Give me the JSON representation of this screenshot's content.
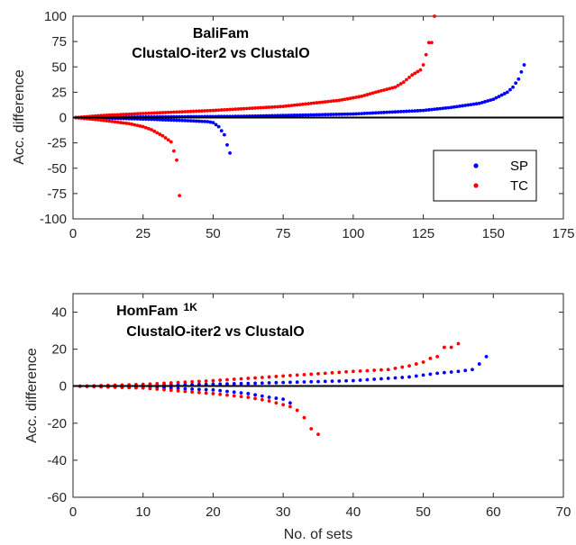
{
  "chart_data": [
    {
      "type": "scatter",
      "title_lines": [
        "BaliFam",
        "ClustalO-iter2  vs  ClustalO"
      ],
      "xlabel": "",
      "ylabel": "Acc. difference",
      "xlim": [
        0,
        175
      ],
      "ylim": [
        -100,
        100
      ],
      "xticks": [
        0,
        25,
        50,
        75,
        100,
        125,
        150,
        175
      ],
      "yticks": [
        -100,
        -75,
        -50,
        -25,
        0,
        25,
        50,
        75,
        100
      ],
      "grid": false,
      "legend": {
        "position": "right",
        "entries": [
          {
            "name": "SP",
            "color": "#0000ff"
          },
          {
            "name": "TC",
            "color": "#ff0000"
          }
        ]
      },
      "series": [
        {
          "name": "SP",
          "color": "#0000ff",
          "segments": [
            {
              "sign": 1,
              "n": 161,
              "anchors": [
                [
                  1,
                  0
                ],
                [
                  20,
                  0.4
                ],
                [
                  60,
                  1.2
                ],
                [
                  100,
                  3.5
                ],
                [
                  125,
                  7
                ],
                [
                  135,
                  10
                ],
                [
                  145,
                  14
                ],
                [
                  150,
                  18
                ],
                [
                  155,
                  25
                ],
                [
                  157,
                  30
                ],
                [
                  159,
                  38
                ],
                [
                  161,
                  52
                ]
              ]
            },
            {
              "sign": -1,
              "n": 56,
              "anchors": [
                [
                  1,
                  0
                ],
                [
                  10,
                  -0.3
                ],
                [
                  25,
                  -1.5
                ],
                [
                  40,
                  -3
                ],
                [
                  48,
                  -4
                ],
                [
                  50,
                  -5
                ],
                [
                  52,
                  -9
                ],
                [
                  54,
                  -17
                ],
                [
                  55,
                  -27
                ],
                [
                  56,
                  -35
                ]
              ]
            }
          ]
        },
        {
          "name": "TC",
          "color": "#ff0000",
          "segments": [
            {
              "sign": 1,
              "n": 129,
              "anchors": [
                [
                  1,
                  0
                ],
                [
                  10,
                  2
                ],
                [
                  25,
                  4
                ],
                [
                  50,
                  7
                ],
                [
                  75,
                  11
                ],
                [
                  95,
                  17
                ],
                [
                  103,
                  21
                ],
                [
                  108,
                  25
                ],
                [
                  115,
                  30
                ],
                [
                  118,
                  35
                ],
                [
                  121,
                  42
                ],
                [
                  124,
                  47
                ],
                [
                  125,
                  52
                ],
                [
                  126,
                  62
                ],
                [
                  127,
                  74
                ],
                [
                  128,
                  74
                ],
                [
                  129,
                  100
                ]
              ]
            },
            {
              "sign": -1,
              "n": 38,
              "anchors": [
                [
                  1,
                  0
                ],
                [
                  10,
                  -2.5
                ],
                [
                  20,
                  -6
                ],
                [
                  25,
                  -9
                ],
                [
                  28,
                  -12
                ],
                [
                  30,
                  -15
                ],
                [
                  32,
                  -18
                ],
                [
                  34,
                  -22
                ],
                [
                  35,
                  -24
                ],
                [
                  37,
                  -42
                ],
                [
                  38,
                  -77
                ]
              ]
            }
          ]
        }
      ]
    },
    {
      "type": "scatter",
      "title_lines": [
        "HomFam",
        "ClustalO-iter2  vs  ClustalO"
      ],
      "title_superscript": "1K",
      "xlabel": "No. of sets",
      "ylabel": "Acc. difference",
      "xlim": [
        0,
        70
      ],
      "ylim": [
        -60,
        50
      ],
      "xticks": [
        0,
        10,
        20,
        30,
        40,
        50,
        60,
        70
      ],
      "yticks": [
        -60,
        -40,
        -20,
        0,
        20,
        40
      ],
      "grid": false,
      "series": [
        {
          "name": "SP",
          "color": "#0000ff",
          "segments": [
            {
              "sign": 1,
              "n": 59,
              "anchors": [
                [
                  1,
                  0
                ],
                [
                  10,
                  0.4
                ],
                [
                  25,
                  1.5
                ],
                [
                  40,
                  3
                ],
                [
                  48,
                  5
                ],
                [
                  52,
                  7
                ],
                [
                  55,
                  8
                ],
                [
                  57,
                  9
                ],
                [
                  58,
                  12
                ],
                [
                  59,
                  16
                ]
              ]
            },
            {
              "sign": -1,
              "n": 31,
              "anchors": [
                [
                  1,
                  0
                ],
                [
                  10,
                  -0.5
                ],
                [
                  20,
                  -2
                ],
                [
                  25,
                  -4
                ],
                [
                  28,
                  -6
                ],
                [
                  30,
                  -7
                ],
                [
                  31,
                  -9
                ]
              ]
            }
          ]
        },
        {
          "name": "TC",
          "color": "#ff0000",
          "segments": [
            {
              "sign": 1,
              "n": 55,
              "anchors": [
                [
                  1,
                  0
                ],
                [
                  10,
                  1
                ],
                [
                  20,
                  3
                ],
                [
                  30,
                  5.5
                ],
                [
                  40,
                  8
                ],
                [
                  45,
                  9
                ],
                [
                  48,
                  11
                ],
                [
                  50,
                  13
                ],
                [
                  51,
                  15
                ],
                [
                  52,
                  16
                ],
                [
                  53,
                  21
                ],
                [
                  54,
                  21
                ],
                [
                  55,
                  23
                ]
              ]
            },
            {
              "sign": -1,
              "n": 35,
              "anchors": [
                [
                  1,
                  0
                ],
                [
                  10,
                  -1
                ],
                [
                  20,
                  -4
                ],
                [
                  25,
                  -6
                ],
                [
                  28,
                  -8
                ],
                [
                  30,
                  -10
                ],
                [
                  31,
                  -11
                ],
                [
                  32,
                  -13
                ],
                [
                  33,
                  -17
                ],
                [
                  34,
                  -23
                ],
                [
                  35,
                  -26
                ]
              ]
            }
          ]
        }
      ]
    }
  ]
}
